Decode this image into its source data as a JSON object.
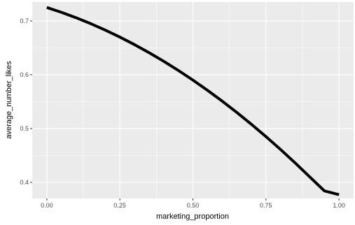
{
  "chart_data": {
    "type": "line",
    "xlabel": "marketing_proportion",
    "ylabel": "average_number_likes",
    "xlim": [
      -0.05,
      1.05
    ],
    "ylim": [
      0.37,
      0.735
    ],
    "x_ticks": [
      0.0,
      0.25,
      0.5,
      0.75,
      1.0
    ],
    "x_tick_labels": [
      "0.00",
      "0.25",
      "0.50",
      "0.75",
      "1.00"
    ],
    "y_ticks": [
      0.4,
      0.5,
      0.6,
      0.7
    ],
    "y_tick_labels": [
      "0.4",
      "0.5",
      "0.6",
      "0.7"
    ],
    "grid": true,
    "background": "#ebebeb",
    "line_color": "#000000",
    "series": [
      {
        "x": [
          0.0,
          0.05,
          0.1,
          0.15,
          0.2,
          0.25,
          0.3,
          0.35,
          0.4,
          0.45,
          0.5,
          0.55,
          0.6,
          0.65,
          0.7,
          0.75,
          0.8,
          0.85,
          0.9,
          0.95,
          1.0
        ],
        "y": [
          0.725,
          0.716,
          0.706,
          0.695,
          0.683,
          0.67,
          0.656,
          0.641,
          0.625,
          0.608,
          0.59,
          0.571,
          0.551,
          0.53,
          0.508,
          0.485,
          0.461,
          0.436,
          0.41,
          0.384,
          0.377
        ]
      }
    ]
  }
}
